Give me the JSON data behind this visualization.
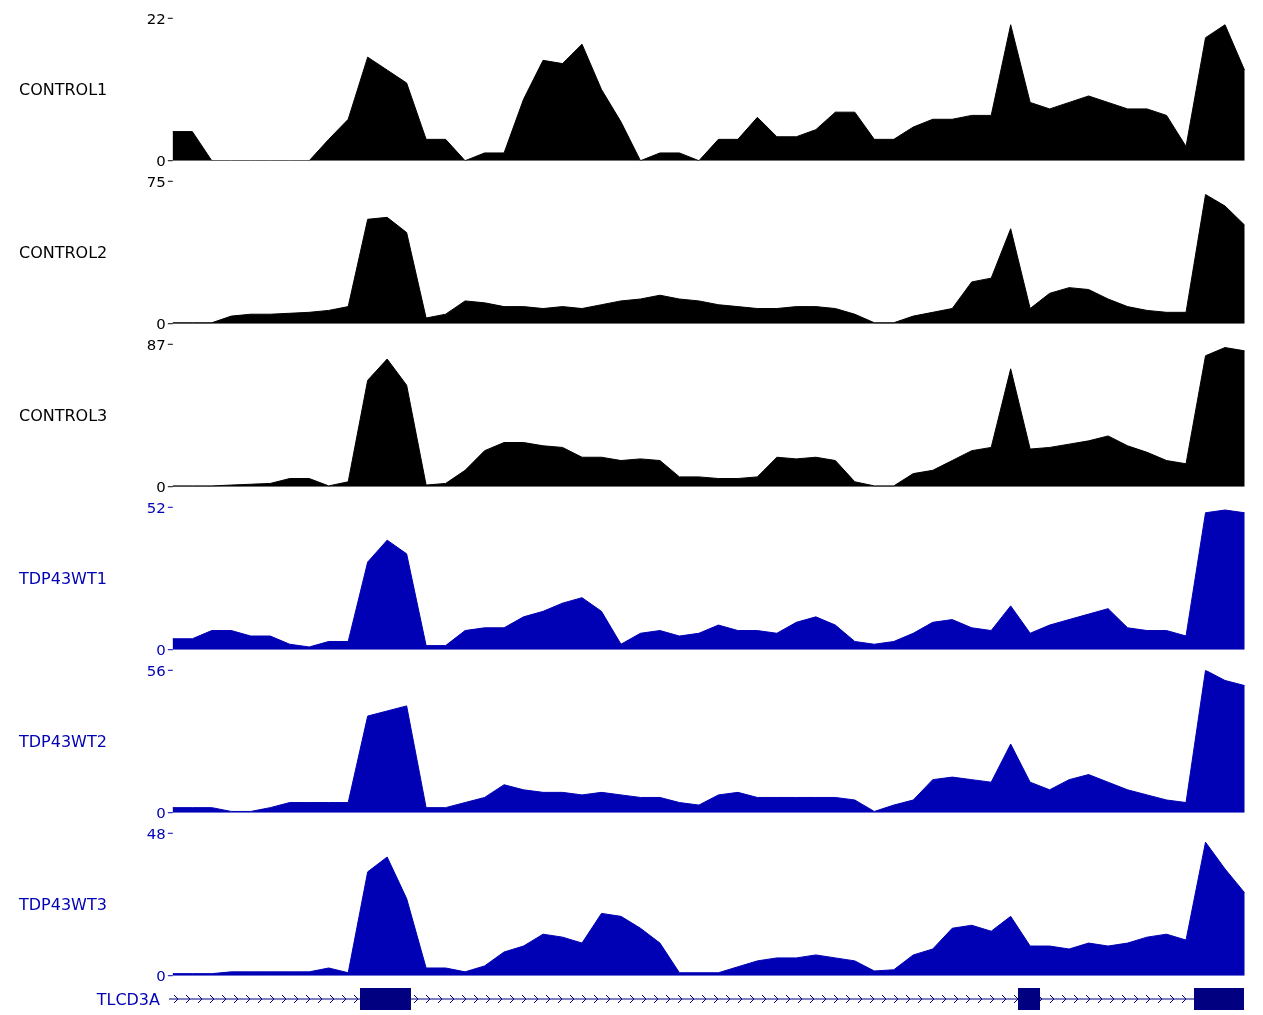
{
  "chart_data": [
    {
      "type": "area",
      "ylabel": "CONTROL1",
      "categories": [
        null,
        null,
        null,
        null,
        null,
        null,
        null,
        null,
        null,
        null,
        null,
        null,
        null,
        null,
        null,
        null,
        null,
        null,
        null,
        null,
        null,
        null,
        null,
        null,
        null,
        null,
        null,
        null,
        null,
        null,
        null,
        null,
        null,
        null,
        null,
        null,
        null,
        null,
        null,
        null,
        null,
        null,
        null,
        null,
        null,
        null,
        null,
        null,
        null,
        null,
        null,
        null,
        null,
        null,
        null,
        null
      ],
      "series": [
        {
          "color": "#000000",
          "values": [
            4.5,
            4.5,
            0,
            0,
            0,
            0,
            0,
            0,
            3.3,
            6.4,
            16,
            14,
            12,
            3.3,
            3.3,
            0,
            1.2,
            1.2,
            9.5,
            15.5,
            15,
            18,
            11,
            6,
            0,
            1.2,
            1.2,
            0,
            3.3,
            3.3,
            6.7,
            3.7,
            3.7,
            4.8,
            7.5,
            7.5,
            3.3,
            3.3,
            5.2,
            6.4,
            6.4,
            7,
            7,
            21,
            9,
            8,
            9,
            10,
            9,
            8,
            8,
            7,
            2.2,
            19,
            21,
            14
          ]
        }
      ],
      "ylim": [
        0,
        22
      ],
      "yticks": [
        0,
        22
      ],
      "tick_labels": "y",
      "legend": false,
      "grid": false
    },
    {
      "type": "area",
      "ylabel": "CONTROL2",
      "categories": [
        null,
        null,
        null,
        null,
        null,
        null,
        null,
        null,
        null,
        null,
        null,
        null,
        null,
        null,
        null,
        null,
        null,
        null,
        null,
        null,
        null,
        null,
        null,
        null,
        null,
        null,
        null,
        null,
        null,
        null,
        null,
        null,
        null,
        null,
        null,
        null,
        null,
        null,
        null,
        null,
        null,
        null,
        null,
        null,
        null,
        null,
        null,
        null,
        null,
        null,
        null,
        null,
        null,
        null,
        null,
        null
      ],
      "series": [
        {
          "color": "#000000",
          "values": [
            0.5,
            0.5,
            0.5,
            4,
            5,
            5,
            5.5,
            6,
            7,
            9,
            55,
            56,
            48,
            3,
            5,
            12,
            11,
            9,
            9,
            8,
            9,
            8,
            10,
            12,
            13,
            15,
            13,
            12,
            10,
            9,
            8,
            8,
            9,
            9,
            8,
            5,
            0.5,
            0.5,
            4,
            6,
            8,
            22,
            24,
            50,
            8,
            16,
            19,
            18,
            13,
            9,
            7,
            6,
            6,
            68,
            62,
            52
          ]
        }
      ],
      "ylim": [
        0,
        75
      ],
      "yticks": [
        0,
        75
      ],
      "tick_labels": "y",
      "legend": false,
      "grid": false
    },
    {
      "type": "area",
      "ylabel": "CONTROL3",
      "categories": [
        null,
        null,
        null,
        null,
        null,
        null,
        null,
        null,
        null,
        null,
        null,
        null,
        null,
        null,
        null,
        null,
        null,
        null,
        null,
        null,
        null,
        null,
        null,
        null,
        null,
        null,
        null,
        null,
        null,
        null,
        null,
        null,
        null,
        null,
        null,
        null,
        null,
        null,
        null,
        null,
        null,
        null,
        null,
        null,
        null,
        null,
        null,
        null,
        null,
        null,
        null,
        null,
        null,
        null,
        null,
        null
      ],
      "series": [
        {
          "color": "#000000",
          "values": [
            0.5,
            0.5,
            0.5,
            1,
            1.5,
            2,
            5,
            5,
            0.5,
            3,
            65,
            78,
            62,
            1,
            2,
            10,
            22,
            27,
            27,
            25,
            24,
            18,
            18,
            16,
            17,
            16,
            6,
            6,
            5,
            5,
            6,
            18,
            17,
            18,
            16,
            3,
            0.5,
            0.5,
            8,
            10,
            16,
            22,
            24,
            72,
            23,
            24,
            26,
            28,
            31,
            25,
            21,
            16,
            14,
            80,
            85,
            83
          ]
        }
      ],
      "ylim": [
        0,
        87
      ],
      "yticks": [
        0,
        87
      ],
      "tick_labels": "y",
      "legend": false,
      "grid": false
    },
    {
      "type": "area",
      "ylabel": "TDP43WT1",
      "categories": [
        null,
        null,
        null,
        null,
        null,
        null,
        null,
        null,
        null,
        null,
        null,
        null,
        null,
        null,
        null,
        null,
        null,
        null,
        null,
        null,
        null,
        null,
        null,
        null,
        null,
        null,
        null,
        null,
        null,
        null,
        null,
        null,
        null,
        null,
        null,
        null,
        null,
        null,
        null,
        null,
        null,
        null,
        null,
        null,
        null,
        null,
        null,
        null,
        null,
        null,
        null,
        null,
        null,
        null,
        null,
        null
      ],
      "series": [
        {
          "color": "#0000b4",
          "values": [
            4,
            4,
            7,
            7,
            5,
            5,
            2,
            1,
            3,
            3,
            32,
            40,
            35,
            1.5,
            1.5,
            7,
            8,
            8,
            12,
            14,
            17,
            19,
            14,
            2,
            6,
            7,
            5,
            6,
            9,
            7,
            7,
            6,
            10,
            12,
            9,
            3,
            2,
            3,
            6,
            10,
            11,
            8,
            7,
            16,
            6,
            9,
            11,
            13,
            15,
            8,
            7,
            7,
            5,
            50,
            51,
            50
          ]
        }
      ],
      "ylim": [
        0,
        52
      ],
      "yticks": [
        0,
        52
      ],
      "tick_labels": "y",
      "legend": false,
      "grid": false
    },
    {
      "type": "area",
      "ylabel": "TDP43WT2",
      "categories": [
        null,
        null,
        null,
        null,
        null,
        null,
        null,
        null,
        null,
        null,
        null,
        null,
        null,
        null,
        null,
        null,
        null,
        null,
        null,
        null,
        null,
        null,
        null,
        null,
        null,
        null,
        null,
        null,
        null,
        null,
        null,
        null,
        null,
        null,
        null,
        null,
        null,
        null,
        null,
        null,
        null,
        null,
        null,
        null,
        null,
        null,
        null,
        null,
        null,
        null,
        null,
        null,
        null,
        null,
        null,
        null
      ],
      "series": [
        {
          "color": "#0000b4",
          "values": [
            2,
            2,
            2,
            0.5,
            0.5,
            2,
            4,
            4,
            4,
            4,
            38,
            40,
            42,
            2,
            2,
            4,
            6,
            11,
            9,
            8,
            8,
            7,
            8,
            7,
            6,
            6,
            4,
            3,
            7,
            8,
            6,
            6,
            6,
            6,
            6,
            5,
            0.5,
            3,
            5,
            13,
            14,
            13,
            12,
            27,
            12,
            9,
            13,
            15,
            12,
            9,
            7,
            5,
            4,
            56,
            52,
            50
          ]
        }
      ],
      "ylim": [
        0,
        56
      ],
      "yticks": [
        0,
        56
      ],
      "tick_labels": "y",
      "legend": false,
      "grid": false
    },
    {
      "type": "area",
      "ylabel": "TDP43WT3",
      "annotations": [
        "TLCD3A"
      ],
      "categories": [
        null,
        null,
        null,
        null,
        null,
        null,
        null,
        null,
        null,
        null,
        null,
        null,
        null,
        null,
        null,
        null,
        null,
        null,
        null,
        null,
        null,
        null,
        null,
        null,
        null,
        null,
        null,
        null,
        null,
        null,
        null,
        null,
        null,
        null,
        null,
        null,
        null,
        null,
        null,
        null,
        null,
        null,
        null,
        null,
        null,
        null,
        null,
        null,
        null,
        null,
        null,
        null,
        null,
        null,
        null,
        null
      ],
      "series": [
        {
          "color": "#0000b4",
          "values": [
            0.7,
            0.7,
            0.7,
            1.3,
            1.3,
            1.3,
            1.3,
            1.3,
            2.6,
            1,
            35,
            40,
            26,
            2.6,
            2.6,
            1.3,
            3.3,
            8,
            10,
            14,
            13,
            11,
            21,
            20,
            16,
            11,
            1,
            1,
            1,
            3,
            5,
            6,
            6,
            7,
            6,
            5,
            1.6,
            2,
            7,
            9,
            16,
            17,
            15,
            20,
            10,
            10,
            9,
            11,
            10,
            11,
            13,
            14,
            12,
            45,
            36,
            28
          ]
        }
      ],
      "ylim": [
        0,
        48
      ],
      "yticks": [
        0,
        48
      ],
      "tick_labels": "y",
      "legend": false,
      "grid": false
    }
  ]
}
